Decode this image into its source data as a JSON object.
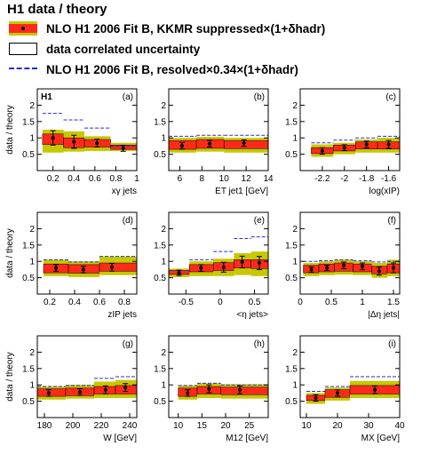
{
  "legend": {
    "title": "H1 data / theory",
    "band_label": "NLO H1 2006 Fit B, KKMR suppressed×(1+δhadr)",
    "box_label": "data correlated uncertainty",
    "dash_label": "NLO H1 2006 Fit B, resolved×0.34×(1+δhadr)",
    "colors": {
      "band_outer": "#c6c800",
      "band_inner": "#ff2a1a",
      "dash": "#2a2ad8",
      "box": "#000000"
    }
  },
  "chart_data": [
    {
      "type": "bar",
      "panel": "(a)",
      "tag": "H1",
      "xlabel": "xγ jets",
      "ylabel": "data / theory",
      "xlim": [
        0.05,
        1.0
      ],
      "ylim": [
        0,
        2.5
      ],
      "xticks": [
        0.2,
        0.4,
        0.6,
        0.8,
        1
      ],
      "yticks": [
        0.5,
        1,
        1.5,
        2
      ],
      "bins": [
        [
          0.1,
          0.3
        ],
        [
          0.3,
          0.5
        ],
        [
          0.5,
          0.75
        ],
        [
          0.75,
          1.0
        ]
      ],
      "points_x": [
        0.2,
        0.4,
        0.62,
        0.87
      ],
      "values": [
        1.0,
        0.88,
        0.84,
        0.68
      ],
      "errors": [
        0.22,
        0.2,
        0.12,
        0.09
      ],
      "band_outer": [
        [
          0.55,
          1.25
        ],
        [
          0.58,
          1.2
        ],
        [
          0.6,
          1.05
        ],
        [
          0.6,
          0.85
        ]
      ],
      "band_inner": [
        [
          0.8,
          1.12
        ],
        [
          0.7,
          1.0
        ],
        [
          0.72,
          0.95
        ],
        [
          0.65,
          0.78
        ]
      ],
      "dashed": [
        1.75,
        1.55,
        1.3,
        0.75
      ]
    },
    {
      "type": "bar",
      "panel": "(b)",
      "xlabel": "ET jet1 [GeV]",
      "ylabel": "",
      "xlim": [
        5,
        14
      ],
      "ylim": [
        0,
        2.5
      ],
      "xticks": [
        6,
        8,
        10,
        12,
        14
      ],
      "yticks": [
        0.5,
        1,
        1.5,
        2
      ],
      "bins": [
        [
          5,
          7.5
        ],
        [
          7.5,
          10
        ],
        [
          10,
          14
        ]
      ],
      "points_x": [
        6.2,
        8.7,
        11.8
      ],
      "values": [
        0.76,
        0.82,
        0.84
      ],
      "errors": [
        0.1,
        0.1,
        0.1
      ],
      "band_outer": [
        [
          0.55,
          1.0
        ],
        [
          0.58,
          1.03
        ],
        [
          0.55,
          1.0
        ]
      ],
      "band_inner": [
        [
          0.65,
          0.92
        ],
        [
          0.68,
          0.95
        ],
        [
          0.67,
          0.92
        ]
      ],
      "dashed": [
        1.05,
        1.08,
        1.08
      ]
    },
    {
      "type": "bar",
      "panel": "(c)",
      "xlabel": "log(xIP)",
      "ylabel": "",
      "xlim": [
        -2.4,
        -1.5
      ],
      "ylim": [
        0,
        2.5
      ],
      "xticks": [
        -2.2,
        -2,
        -1.8,
        -1.6
      ],
      "xticklabels": [
        "-2.2",
        "-2",
        "-1.8",
        "-1.6"
      ],
      "yticks": [
        0.5,
        1,
        1.5,
        2
      ],
      "bins": [
        [
          -2.3,
          -2.1
        ],
        [
          -2.1,
          -1.9
        ],
        [
          -1.9,
          -1.7
        ],
        [
          -1.7,
          -1.5
        ]
      ],
      "points_x": [
        -2.2,
        -2.0,
        -1.8,
        -1.6
      ],
      "values": [
        0.6,
        0.7,
        0.8,
        0.8
      ],
      "errors": [
        0.1,
        0.09,
        0.1,
        0.12
      ],
      "band_outer": [
        [
          0.42,
          0.8
        ],
        [
          0.5,
          0.85
        ],
        [
          0.55,
          0.95
        ],
        [
          0.55,
          1.0
        ]
      ],
      "band_inner": [
        [
          0.52,
          0.7
        ],
        [
          0.6,
          0.78
        ],
        [
          0.66,
          0.88
        ],
        [
          0.66,
          0.88
        ]
      ],
      "dashed": [
        0.85,
        0.93,
        1.0,
        1.05
      ]
    },
    {
      "type": "bar",
      "panel": "(d)",
      "xlabel": "zIP jets",
      "ylabel": "data / theory",
      "xlim": [
        0.1,
        0.9
      ],
      "ylim": [
        0,
        2.5
      ],
      "xticks": [
        0.2,
        0.4,
        0.6,
        0.8
      ],
      "yticks": [
        0.5,
        1,
        1.5,
        2
      ],
      "bins": [
        [
          0.15,
          0.35
        ],
        [
          0.35,
          0.6
        ],
        [
          0.6,
          0.9
        ]
      ],
      "points_x": [
        0.25,
        0.47,
        0.7
      ],
      "values": [
        0.8,
        0.75,
        0.82
      ],
      "errors": [
        0.1,
        0.1,
        0.12
      ],
      "band_outer": [
        [
          0.55,
          1.05
        ],
        [
          0.52,
          1.0
        ],
        [
          0.58,
          1.15
        ]
      ],
      "band_inner": [
        [
          0.65,
          0.92
        ],
        [
          0.64,
          0.9
        ],
        [
          0.7,
          0.95
        ]
      ],
      "dashed": [
        1.05,
        0.98,
        1.15
      ]
    },
    {
      "type": "bar",
      "panel": "(e)",
      "xlabel": "<η jets>",
      "ylabel": "",
      "xlim": [
        -0.75,
        0.7
      ],
      "ylim": [
        0,
        2.5
      ],
      "xticks": [
        -0.5,
        0,
        0.5
      ],
      "yticks": [
        0.5,
        1,
        1.5,
        2
      ],
      "bins": [
        [
          -0.75,
          -0.45
        ],
        [
          -0.45,
          -0.1
        ],
        [
          -0.1,
          0.2
        ],
        [
          0.2,
          0.45
        ],
        [
          0.45,
          0.7
        ]
      ],
      "points_x": [
        -0.6,
        -0.28,
        0.05,
        0.32,
        0.57
      ],
      "values": [
        0.65,
        0.8,
        0.82,
        0.98,
        0.95
      ],
      "errors": [
        0.08,
        0.1,
        0.15,
        0.18,
        0.2
      ],
      "band_outer": [
        [
          0.52,
          0.78
        ],
        [
          0.55,
          1.0
        ],
        [
          0.55,
          1.08
        ],
        [
          0.58,
          1.25
        ],
        [
          0.55,
          1.3
        ]
      ],
      "band_inner": [
        [
          0.6,
          0.72
        ],
        [
          0.68,
          0.9
        ],
        [
          0.72,
          0.96
        ],
        [
          0.8,
          1.05
        ],
        [
          0.78,
          1.05
        ]
      ],
      "dashed": [
        0.72,
        1.05,
        1.3,
        1.7,
        1.75
      ]
    },
    {
      "type": "bar",
      "panel": "(f)",
      "xlabel": "|Δη jets|",
      "ylabel": "",
      "xlim": [
        0,
        1.6
      ],
      "ylim": [
        0,
        2.5
      ],
      "xticks": [
        0,
        0.5,
        1,
        1.5
      ],
      "yticks": [
        0.5,
        1,
        1.5,
        2
      ],
      "bins": [
        [
          0.05,
          0.3
        ],
        [
          0.3,
          0.55
        ],
        [
          0.55,
          0.85
        ],
        [
          0.85,
          1.15
        ],
        [
          1.15,
          1.4
        ],
        [
          1.4,
          1.6
        ]
      ],
      "points_x": [
        0.18,
        0.43,
        0.7,
        1.0,
        1.27,
        1.5
      ],
      "values": [
        0.75,
        0.8,
        0.88,
        0.85,
        0.7,
        0.8
      ],
      "errors": [
        0.08,
        0.08,
        0.1,
        0.1,
        0.12,
        0.15
      ],
      "band_outer": [
        [
          0.55,
          0.95
        ],
        [
          0.58,
          1.0
        ],
        [
          0.6,
          1.05
        ],
        [
          0.58,
          1.0
        ],
        [
          0.5,
          0.95
        ],
        [
          0.55,
          1.05
        ]
      ],
      "band_inner": [
        [
          0.65,
          0.88
        ],
        [
          0.68,
          0.92
        ],
        [
          0.7,
          0.95
        ],
        [
          0.68,
          0.92
        ],
        [
          0.62,
          0.85
        ],
        [
          0.65,
          0.92
        ]
      ],
      "dashed": [
        1.0,
        1.02,
        1.05,
        1.02,
        0.98,
        1.0
      ]
    },
    {
      "type": "bar",
      "panel": "(g)",
      "xlabel": "W [GeV]",
      "ylabel": "data / theory",
      "xlim": [
        175,
        245
      ],
      "ylim": [
        0,
        2.5
      ],
      "xticks": [
        180,
        200,
        220,
        240
      ],
      "yticks": [
        0.5,
        1,
        1.5,
        2
      ],
      "bins": [
        [
          175,
          195
        ],
        [
          195,
          215
        ],
        [
          215,
          230
        ],
        [
          230,
          245
        ]
      ],
      "points_x": [
        183,
        205,
        223,
        237
      ],
      "values": [
        0.75,
        0.78,
        0.85,
        0.92
      ],
      "errors": [
        0.1,
        0.1,
        0.12,
        0.12
      ],
      "band_outer": [
        [
          0.55,
          0.95
        ],
        [
          0.58,
          1.0
        ],
        [
          0.6,
          1.1
        ],
        [
          0.6,
          1.15
        ]
      ],
      "band_inner": [
        [
          0.65,
          0.88
        ],
        [
          0.67,
          0.9
        ],
        [
          0.72,
          0.95
        ],
        [
          0.72,
          0.98
        ]
      ],
      "dashed": [
        0.95,
        0.98,
        1.2,
        1.25
      ]
    },
    {
      "type": "bar",
      "panel": "(h)",
      "xlabel": "M12 [GeV]",
      "ylabel": "",
      "xlim": [
        8,
        29
      ],
      "ylim": [
        0,
        2.5
      ],
      "xticks": [
        10,
        15,
        20,
        25
      ],
      "yticks": [
        0.5,
        1,
        1.5,
        2
      ],
      "bins": [
        [
          10,
          14
        ],
        [
          14,
          19
        ],
        [
          19,
          29
        ]
      ],
      "points_x": [
        12,
        16.5,
        23
      ],
      "values": [
        0.75,
        0.88,
        0.85
      ],
      "errors": [
        0.1,
        0.12,
        0.12
      ],
      "band_outer": [
        [
          0.55,
          0.98
        ],
        [
          0.6,
          1.05
        ],
        [
          0.58,
          1.02
        ]
      ],
      "band_inner": [
        [
          0.65,
          0.9
        ],
        [
          0.72,
          0.95
        ],
        [
          0.7,
          0.93
        ]
      ],
      "dashed": [
        0.98,
        1.05,
        1.0
      ]
    },
    {
      "type": "bar",
      "panel": "(i)",
      "xlabel": "MX [GeV]",
      "ylabel": "",
      "xlim": [
        8,
        40
      ],
      "ylim": [
        0,
        2.5
      ],
      "xticks": [
        10,
        20,
        30,
        40
      ],
      "yticks": [
        0.5,
        1,
        1.5,
        2
      ],
      "bins": [
        [
          10,
          16
        ],
        [
          16,
          24
        ],
        [
          24,
          40
        ]
      ],
      "points_x": [
        13,
        20,
        32
      ],
      "values": [
        0.6,
        0.75,
        0.85
      ],
      "errors": [
        0.1,
        0.1,
        0.12
      ],
      "band_outer": [
        [
          0.42,
          0.75
        ],
        [
          0.52,
          0.92
        ],
        [
          0.6,
          1.12
        ]
      ],
      "band_inner": [
        [
          0.52,
          0.68
        ],
        [
          0.62,
          0.85
        ],
        [
          0.72,
          0.98
        ]
      ],
      "dashed": [
        0.8,
        0.95,
        1.25
      ]
    }
  ]
}
